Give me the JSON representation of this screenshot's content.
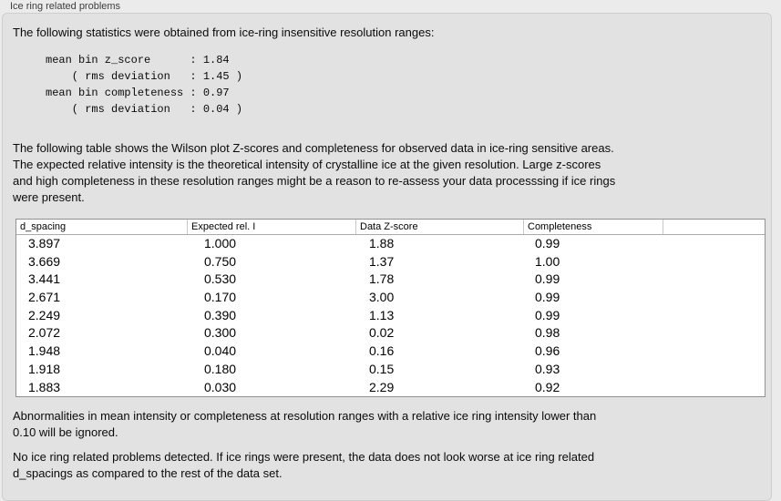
{
  "groupbox": {
    "title": "Ice ring related problems"
  },
  "intro": {
    "text": "The following statistics were obtained from ice-ring insensitive resolution ranges:"
  },
  "stats_block": {
    "lines": [
      "mean bin z_score      : 1.84",
      "    ( rms deviation   : 1.45 )",
      "mean bin completeness : 0.97",
      "    ( rms deviation   : 0.04 )"
    ]
  },
  "description": {
    "lines": [
      "The following table shows the Wilson plot Z-scores and completeness for observed data in ice-ring sensitive areas.",
      "The expected relative intensity is the theoretical intensity of crystalline ice at the given resolution. Large z-scores",
      "and high completeness in these resolution ranges might be a reason to re-assess your data processsing if ice rings",
      "were present."
    ]
  },
  "table": {
    "headers": [
      "d_spacing",
      "Expected rel. I",
      "Data Z-score",
      "Completeness"
    ],
    "rows": [
      [
        "3.897",
        "1.000",
        "1.88",
        "0.99"
      ],
      [
        "3.669",
        "0.750",
        "1.37",
        "1.00"
      ],
      [
        "3.441",
        "0.530",
        "1.78",
        "0.99"
      ],
      [
        "2.671",
        "0.170",
        "3.00",
        "0.99"
      ],
      [
        "2.249",
        "0.390",
        "1.13",
        "0.99"
      ],
      [
        "2.072",
        "0.300",
        "0.02",
        "0.98"
      ],
      [
        "1.948",
        "0.040",
        "0.16",
        "0.96"
      ],
      [
        "1.918",
        "0.180",
        "0.15",
        "0.93"
      ],
      [
        "1.883",
        "0.030",
        "2.29",
        "0.92"
      ]
    ]
  },
  "ignore_note": {
    "lines": [
      "Abnormalities in mean intensity or completeness at resolution ranges with a relative ice ring intensity lower than",
      "0.10 will be ignored."
    ]
  },
  "conclusion": {
    "lines": [
      "No ice ring related problems detected. If ice rings were present, the data does not look worse at ice ring related",
      "d_spacings as compared to the rest of the data set."
    ]
  },
  "colors": {
    "outer_background": "#ebebeb",
    "panel_background": "#e2e2e2",
    "table_background": "#ffffff",
    "table_border": "#919191",
    "text": "#0a0a0a"
  }
}
